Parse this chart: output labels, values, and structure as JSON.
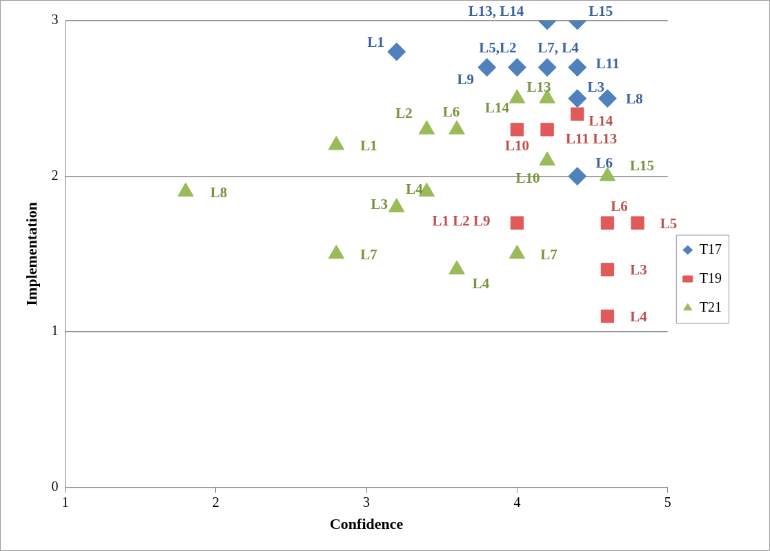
{
  "chart_data": {
    "type": "scatter",
    "xlabel": "Confidence",
    "ylabel": "Implementation",
    "xlim": [
      1,
      5
    ],
    "ylim": [
      0,
      3
    ],
    "xticks": [
      1,
      2,
      3,
      4,
      5
    ],
    "yticks": [
      0,
      1,
      2,
      3
    ],
    "grid": "y",
    "legend": "right",
    "series": [
      {
        "name": "T17",
        "color": "#4f81bd",
        "marker": "diamond",
        "x": [
          3.2,
          3.8,
          4.0,
          4.2,
          4.4,
          4.2,
          4.4,
          4.4,
          4.6,
          4.4
        ],
        "values": [
          2.8,
          2.7,
          2.7,
          2.7,
          2.7,
          3.0,
          3.0,
          2.5,
          2.5,
          2.0
        ]
      },
      {
        "name": "T19",
        "color": "#e05a5a",
        "marker": "square",
        "x": [
          4.0,
          4.2,
          4.4,
          4.0,
          4.6,
          4.8,
          4.6,
          4.6
        ],
        "values": [
          2.3,
          2.3,
          2.4,
          1.7,
          1.7,
          1.7,
          1.4,
          1.1
        ]
      },
      {
        "name": "T21",
        "color": "#9bbb59",
        "marker": "triangle",
        "x": [
          1.8,
          2.8,
          2.8,
          3.2,
          3.4,
          3.4,
          3.6,
          3.6,
          4.0,
          4.0,
          4.2,
          4.2,
          4.6
        ],
        "values": [
          1.9,
          2.2,
          1.5,
          1.8,
          1.9,
          2.3,
          2.3,
          1.4,
          1.5,
          2.5,
          2.5,
          2.1,
          2.0
        ]
      }
    ],
    "annotations": [
      {
        "text": "L1",
        "x": 3.2,
        "y": 2.8
      },
      {
        "text": "L9",
        "x": 3.8,
        "y": 2.7
      },
      {
        "text": "L5,L2",
        "x": 4.0,
        "y": 2.7
      },
      {
        "text": "L7, L4",
        "x": 4.2,
        "y": 2.7
      },
      {
        "text": "L11",
        "x": 4.4,
        "y": 2.7
      },
      {
        "text": "L13, L14",
        "x": 4.2,
        "y": 3.0
      },
      {
        "text": "L15",
        "x": 4.4,
        "y": 3.0
      },
      {
        "text": "L3",
        "x": 4.4,
        "y": 2.5
      },
      {
        "text": "L8",
        "x": 4.6,
        "y": 2.5
      },
      {
        "text": "L6",
        "x": 4.4,
        "y": 2.0
      },
      {
        "text": "L10",
        "x": 4.0,
        "y": 2.3
      },
      {
        "text": "L11 L13",
        "x": 4.2,
        "y": 2.3
      },
      {
        "text": "L14",
        "x": 4.4,
        "y": 2.4
      },
      {
        "text": "L1 L2 L9",
        "x": 4.0,
        "y": 1.7
      },
      {
        "text": "L6",
        "x": 4.6,
        "y": 1.7
      },
      {
        "text": "L5",
        "x": 4.8,
        "y": 1.7
      },
      {
        "text": "L3",
        "x": 4.6,
        "y": 1.4
      },
      {
        "text": "L4",
        "x": 4.6,
        "y": 1.1
      },
      {
        "text": "L8",
        "x": 1.8,
        "y": 1.9
      },
      {
        "text": "L1",
        "x": 2.8,
        "y": 2.2
      },
      {
        "text": "L7",
        "x": 2.8,
        "y": 1.5
      },
      {
        "text": "L3",
        "x": 3.2,
        "y": 1.8
      },
      {
        "text": "L4",
        "x": 3.4,
        "y": 1.9
      },
      {
        "text": "L2",
        "x": 3.4,
        "y": 2.3
      },
      {
        "text": "L6",
        "x": 3.6,
        "y": 2.3
      },
      {
        "text": "L4",
        "x": 3.6,
        "y": 1.4
      },
      {
        "text": "L7",
        "x": 4.0,
        "y": 1.5
      },
      {
        "text": "L14",
        "x": 4.0,
        "y": 2.5
      },
      {
        "text": "L13",
        "x": 4.2,
        "y": 2.5
      },
      {
        "text": "L10",
        "x": 4.2,
        "y": 2.1
      },
      {
        "text": "L15",
        "x": 4.6,
        "y": 2.0
      }
    ]
  }
}
